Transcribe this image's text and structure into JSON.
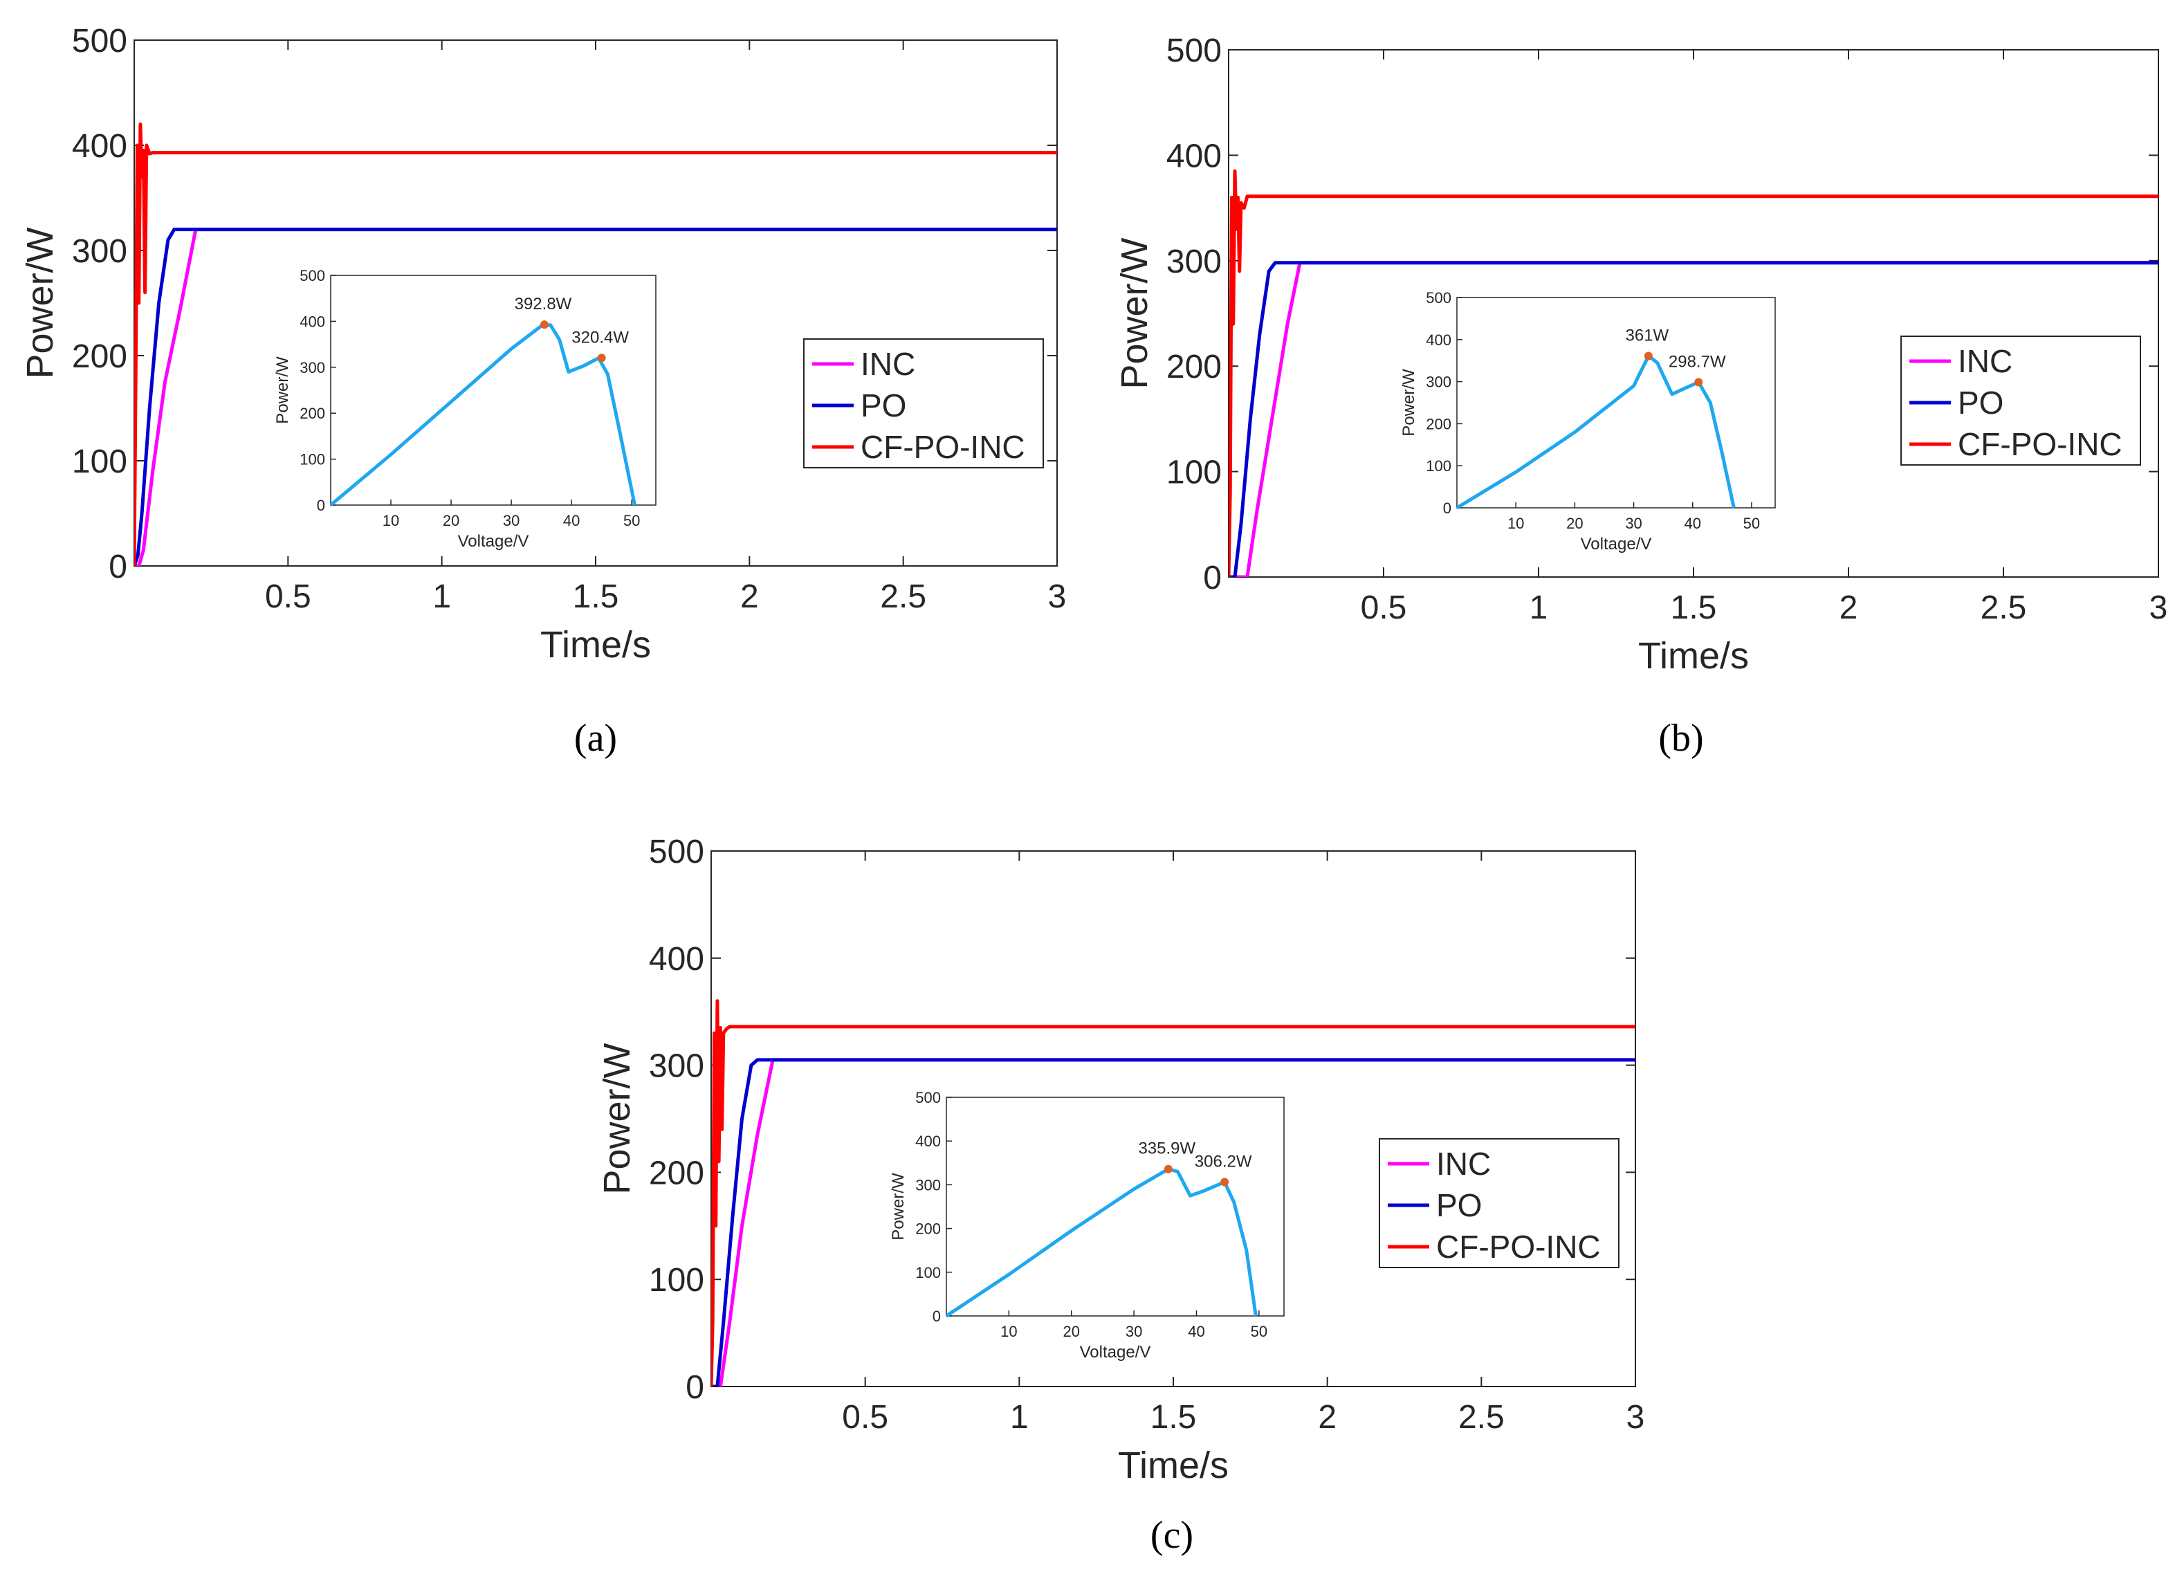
{
  "chart_data": [
    {
      "id": "a",
      "type": "line",
      "caption": "(a)",
      "xlabel": "Time/s",
      "ylabel": "Power/W",
      "xlim": [
        0,
        3
      ],
      "ylim": [
        0,
        500
      ],
      "xticks": [
        0.5,
        1,
        1.5,
        2,
        2.5,
        3
      ],
      "yticks": [
        0,
        100,
        200,
        300,
        400,
        500
      ],
      "legend": {
        "position": "right",
        "entries": [
          "INC",
          "PO",
          "CF-PO-INC"
        ]
      },
      "series": [
        {
          "name": "INC",
          "color": "#ff00ff",
          "x": [
            0,
            0.015,
            0.03,
            0.06,
            0.1,
            0.15,
            0.2,
            3
          ],
          "y": [
            0,
            0,
            15,
            90,
            175,
            245,
            320,
            320
          ]
        },
        {
          "name": "PO",
          "color": "#0000d0",
          "x": [
            0,
            0.012,
            0.025,
            0.05,
            0.08,
            0.11,
            0.13,
            3
          ],
          "y": [
            0,
            10,
            50,
            150,
            250,
            310,
            320,
            320
          ]
        },
        {
          "name": "CF-PO-INC",
          "color": "#ff0000",
          "x": [
            0,
            0.005,
            0.01,
            0.015,
            0.02,
            0.025,
            0.03,
            0.035,
            0.04,
            0.05,
            0.06,
            3
          ],
          "y": [
            0,
            180,
            400,
            250,
            420,
            370,
            395,
            260,
            400,
            392,
            393,
            393
          ]
        }
      ],
      "inset": {
        "xlabel": "Voltage/V",
        "ylabel": "Power/W",
        "xlim": [
          0,
          54
        ],
        "ylim": [
          0,
          500
        ],
        "xticks": [
          10,
          20,
          30,
          40,
          50
        ],
        "yticks": [
          0,
          100,
          200,
          300,
          400,
          500
        ],
        "curve": {
          "x": [
            0,
            10,
            20,
            30,
            35,
            36.5,
            38,
            39.5,
            42,
            44.5,
            46,
            48,
            50.5
          ],
          "y": [
            0,
            110,
            225,
            340,
            390,
            392,
            360,
            290,
            303,
            320,
            285,
            160,
            0
          ]
        },
        "peaks": [
          {
            "x": 35.5,
            "y": 392.8,
            "label": "392.8W"
          },
          {
            "x": 45,
            "y": 320.4,
            "label": "320.4W"
          }
        ]
      }
    },
    {
      "id": "b",
      "type": "line",
      "caption": "(b)",
      "xlabel": "Time/s",
      "ylabel": "Power/W",
      "xlim": [
        0,
        3
      ],
      "ylim": [
        0,
        500
      ],
      "xticks": [
        0.5,
        1,
        1.5,
        2,
        2.5,
        3
      ],
      "yticks": [
        0,
        100,
        200,
        300,
        400,
        500
      ],
      "legend": {
        "position": "right",
        "entries": [
          "INC",
          "PO",
          "CF-PO-INC"
        ]
      },
      "series": [
        {
          "name": "INC",
          "color": "#ff00ff",
          "x": [
            0,
            0.06,
            0.09,
            0.14,
            0.19,
            0.23,
            3
          ],
          "y": [
            0,
            0,
            60,
            150,
            240,
            298,
            298
          ]
        },
        {
          "name": "PO",
          "color": "#0000d0",
          "x": [
            0,
            0.02,
            0.04,
            0.07,
            0.1,
            0.13,
            0.15,
            3
          ],
          "y": [
            0,
            0,
            50,
            150,
            230,
            290,
            298,
            298
          ]
        },
        {
          "name": "CF-PO-INC",
          "color": "#ff0000",
          "x": [
            0,
            0.005,
            0.01,
            0.015,
            0.02,
            0.025,
            0.03,
            0.035,
            0.04,
            0.05,
            0.06,
            3
          ],
          "y": [
            0,
            80,
            360,
            240,
            385,
            330,
            360,
            290,
            355,
            350,
            361,
            361
          ]
        }
      ],
      "inset": {
        "xlabel": "Voltage/V",
        "ylabel": "Power/W",
        "xlim": [
          0,
          54
        ],
        "ylim": [
          0,
          500
        ],
        "xticks": [
          10,
          20,
          30,
          40,
          50
        ],
        "yticks": [
          0,
          100,
          200,
          300,
          400,
          500
        ],
        "curve": {
          "x": [
            0,
            10,
            20,
            30,
            32.5,
            34,
            36.5,
            38.5,
            41,
            43,
            45,
            47
          ],
          "y": [
            0,
            85,
            180,
            290,
            361,
            345,
            270,
            283,
            298.7,
            250,
            130,
            0
          ]
        },
        "peaks": [
          {
            "x": 32.5,
            "y": 361,
            "label": "361W"
          },
          {
            "x": 41,
            "y": 298.7,
            "label": "298.7W"
          }
        ]
      }
    },
    {
      "id": "c",
      "type": "line",
      "caption": "(c)",
      "xlabel": "Time/s",
      "ylabel": "Power/W",
      "xlim": [
        0,
        3
      ],
      "ylim": [
        0,
        500
      ],
      "xticks": [
        0.5,
        1,
        1.5,
        2,
        2.5,
        3
      ],
      "yticks": [
        0,
        100,
        200,
        300,
        400,
        500
      ],
      "legend": {
        "position": "right",
        "entries": [
          "INC",
          "PO",
          "CF-PO-INC"
        ]
      },
      "series": [
        {
          "name": "INC",
          "color": "#ff00ff",
          "x": [
            0,
            0.03,
            0.06,
            0.1,
            0.15,
            0.2,
            3
          ],
          "y": [
            0,
            0,
            60,
            150,
            235,
            305,
            305
          ]
        },
        {
          "name": "PO",
          "color": "#0000d0",
          "x": [
            0,
            0.02,
            0.04,
            0.07,
            0.1,
            0.13,
            0.15,
            3
          ],
          "y": [
            0,
            0,
            60,
            160,
            250,
            300,
            305,
            305
          ]
        },
        {
          "name": "CF-PO-INC",
          "color": "#ff0000",
          "x": [
            0,
            0.005,
            0.01,
            0.015,
            0.02,
            0.025,
            0.03,
            0.035,
            0.04,
            0.05,
            0.06,
            3
          ],
          "y": [
            0,
            60,
            330,
            150,
            360,
            210,
            335,
            240,
            330,
            334,
            336,
            336
          ]
        }
      ],
      "inset": {
        "xlabel": "Voltage/V",
        "ylabel": "Power/W",
        "xlim": [
          0,
          54
        ],
        "ylim": [
          0,
          500
        ],
        "xticks": [
          10,
          20,
          30,
          40,
          50
        ],
        "yticks": [
          0,
          100,
          200,
          300,
          400,
          500
        ],
        "curve": {
          "x": [
            0,
            10,
            20,
            30,
            35.5,
            37,
            39,
            41,
            44.5,
            46,
            48,
            49.5
          ],
          "y": [
            0,
            95,
            195,
            290,
            335.9,
            330,
            275,
            285,
            306.2,
            260,
            150,
            0
          ]
        },
        "peaks": [
          {
            "x": 35.5,
            "y": 335.9,
            "label": "335.9W"
          },
          {
            "x": 44.5,
            "y": 306.2,
            "label": "306.2W"
          }
        ]
      }
    }
  ]
}
